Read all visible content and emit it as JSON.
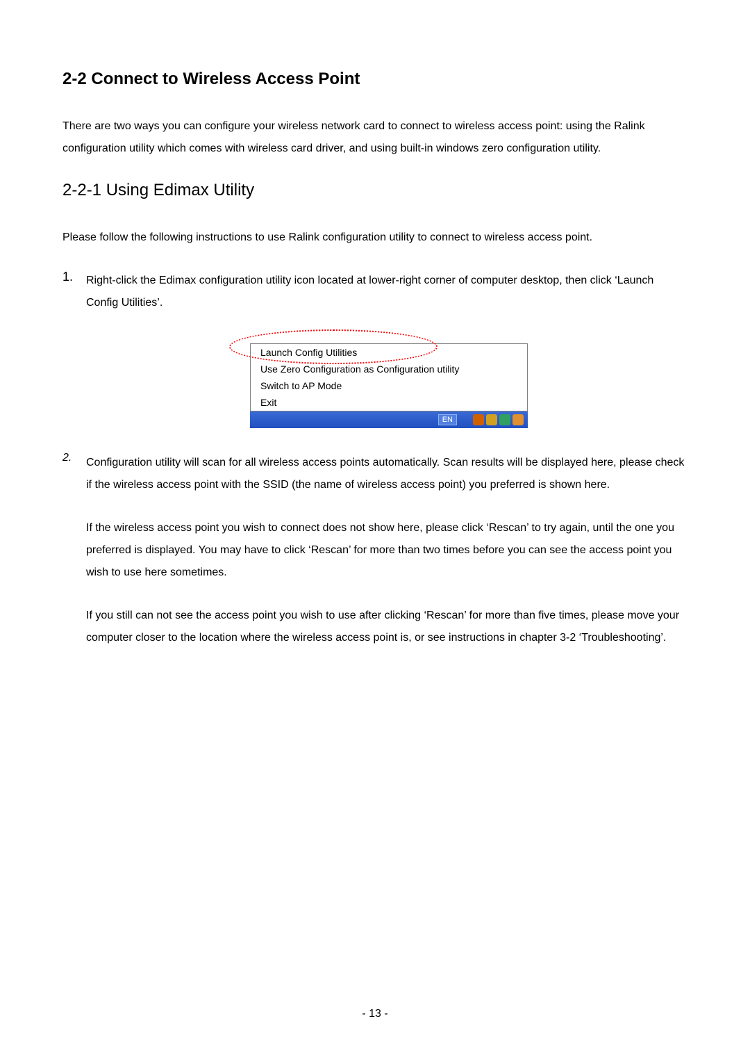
{
  "heading2": "2-2 Connect to Wireless Access Point",
  "intro": "There are two ways you can configure your wireless network card to connect to wireless access point: using the Ralink configuration utility which comes with wireless card driver, and using built-in windows zero configuration utility.",
  "heading3": "2-2-1 Using Edimax Utility",
  "lead": "Please follow the following instructions to use Ralink configuration utility to connect to wireless access point.",
  "step1_num": "1.",
  "step1": "Right-click the Edimax configuration utility icon located at lower-right corner of computer desktop, then click ‘Launch Config Utilities’.",
  "menu": {
    "item1": "Launch Config Utilities",
    "item2": "Use Zero Configuration as Configuration utility",
    "item3": "Switch to AP Mode",
    "item4": "Exit",
    "lang": "EN"
  },
  "step2_num": "2.",
  "step2_p1": "Configuration utility will scan for all wireless access points automatically. Scan results will be displayed here, please check if the wireless access point with the SSID (the name of wireless access point) you preferred is shown here.",
  "step2_p2": "If the wireless access point you wish to connect does not show here, please click ‘Rescan’ to try again, until the one you preferred is displayed. You may have to click ‘Rescan’ for more than two times before you can see the access point you wish to use here sometimes.",
  "step2_p3": "If you still can not see the access point you wish to use after clicking ‘Rescan’ for more than five times, please move your computer closer to the location where the wireless access point is, or see instructions in chapter 3-2 ‘Troubleshooting’.",
  "pagenum": "- 13 -",
  "colors": {
    "tray1": "#2a8a2a",
    "tray2": "#d06000",
    "tray3": "#d0a020",
    "tray4": "#30a060",
    "tray5": "#e09030"
  }
}
